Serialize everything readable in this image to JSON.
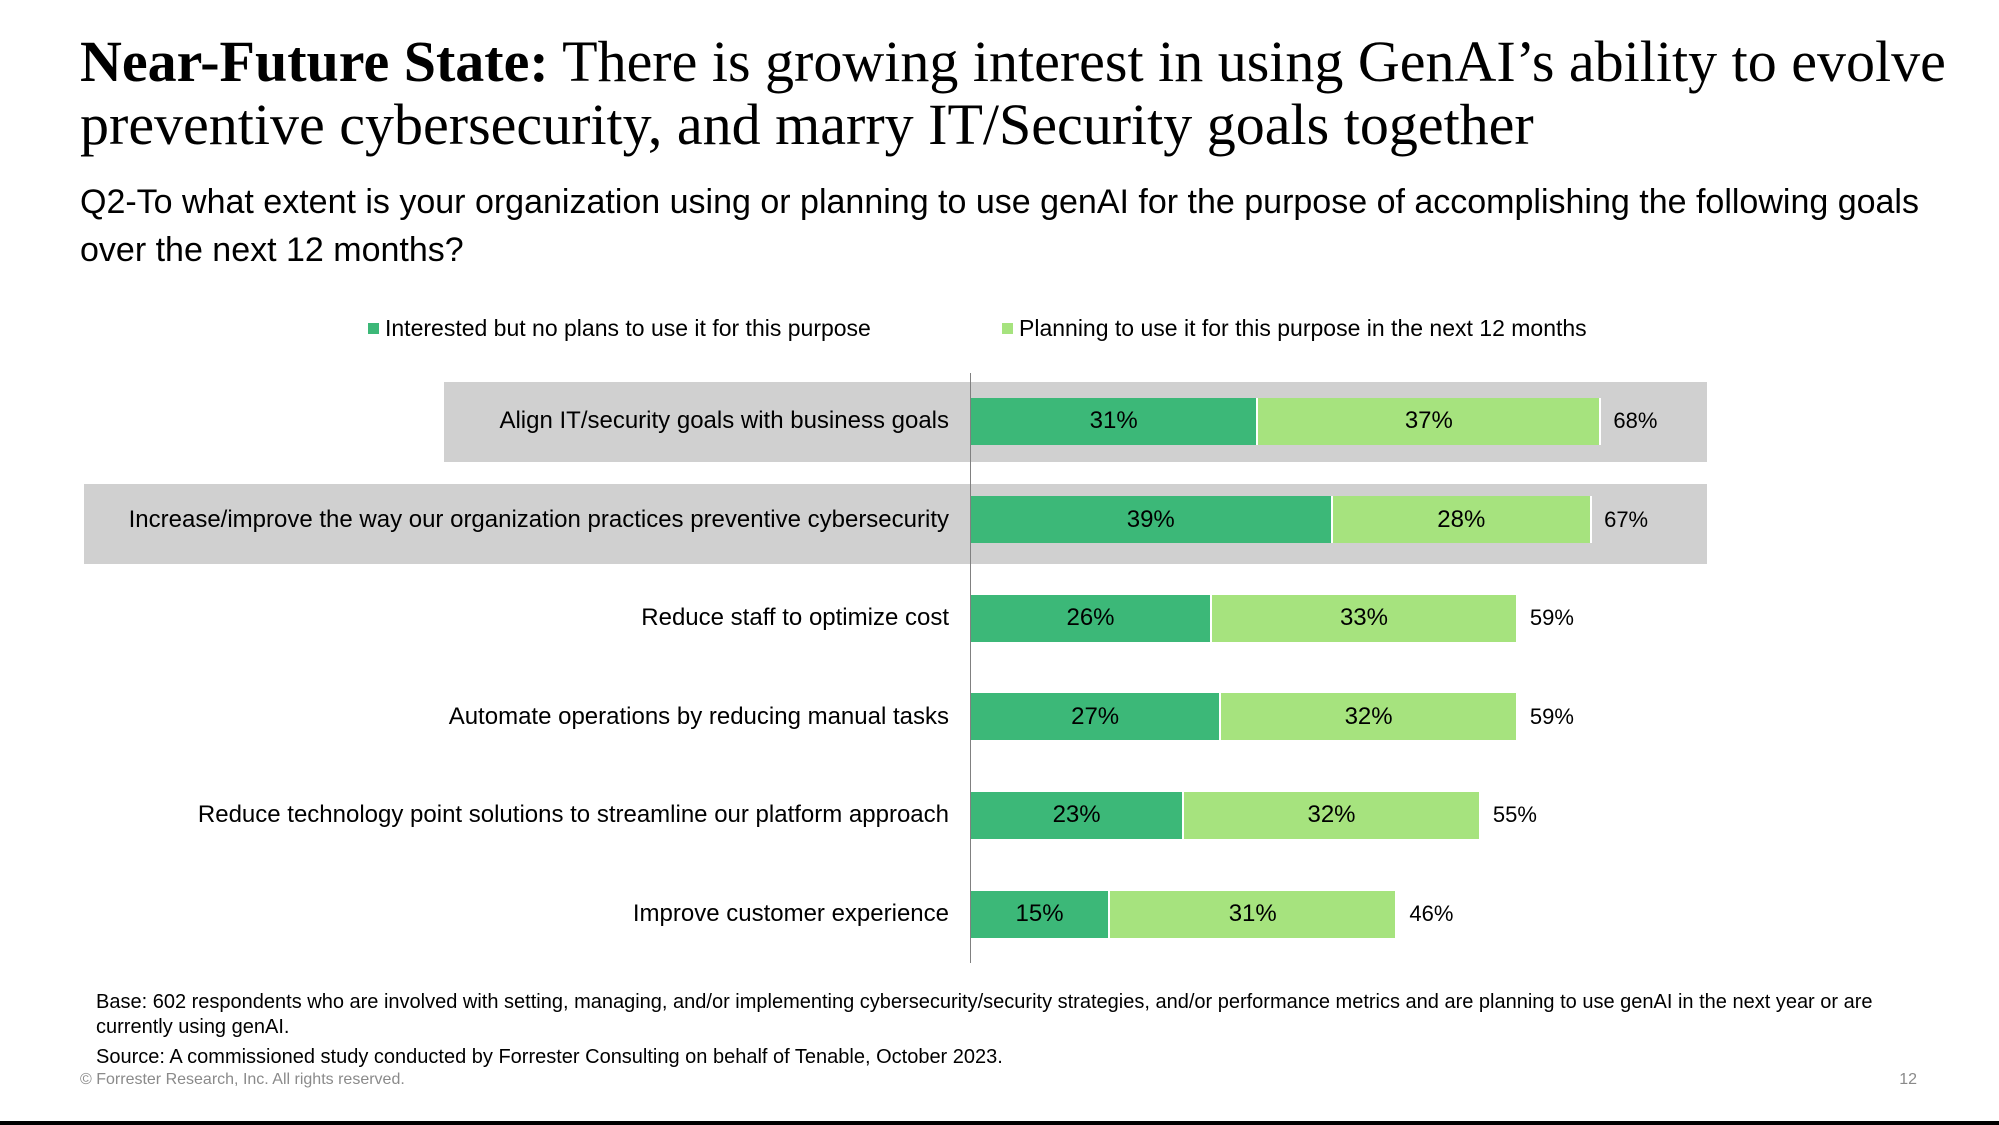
{
  "title": {
    "bold": "Near-Future State:",
    "rest": " There is growing interest in using GenAI’s ability to evolve preventive cybersecurity, and marry IT/Security goals together"
  },
  "subtitle": "Q2-To what extent is your organization using or planning to use genAI for the purpose of accomplishing the following goals over the next 12 months?",
  "chart_data": {
    "type": "bar",
    "orientation": "horizontal",
    "stacked": true,
    "categories": [
      "Align IT/security goals with business goals",
      "Increase/improve the way our organization practices preventive cybersecurity",
      "Reduce staff to optimize cost",
      "Automate operations by reducing manual tasks",
      "Reduce technology point solutions to streamline our platform approach",
      "Improve customer experience"
    ],
    "series": [
      {
        "name": "Interested but no plans to use it for this purpose",
        "color": "#3cb878",
        "values": [
          31,
          39,
          26,
          27,
          23,
          15
        ]
      },
      {
        "name": "Planning to use it for this purpose in the next 12 months",
        "color": "#a6e37e",
        "values": [
          37,
          28,
          33,
          32,
          32,
          31
        ]
      }
    ],
    "totals": [
      68,
      67,
      59,
      59,
      55,
      46
    ],
    "value_suffix": "%",
    "highlighted_rows": [
      0,
      1
    ],
    "legend_position": "top",
    "grid": false
  },
  "footnotes": {
    "base": "Base: 602 respondents who are involved with setting, managing, and/or implementing cybersecurity/security strategies, and/or performance metrics and are planning to use genAI in the next year or are currently using genAI.",
    "source": "Source: A commissioned study conducted by Forrester Consulting on behalf of Tenable, October 2023."
  },
  "copyright": "© Forrester Research, Inc. All rights reserved.",
  "page_number": "12"
}
